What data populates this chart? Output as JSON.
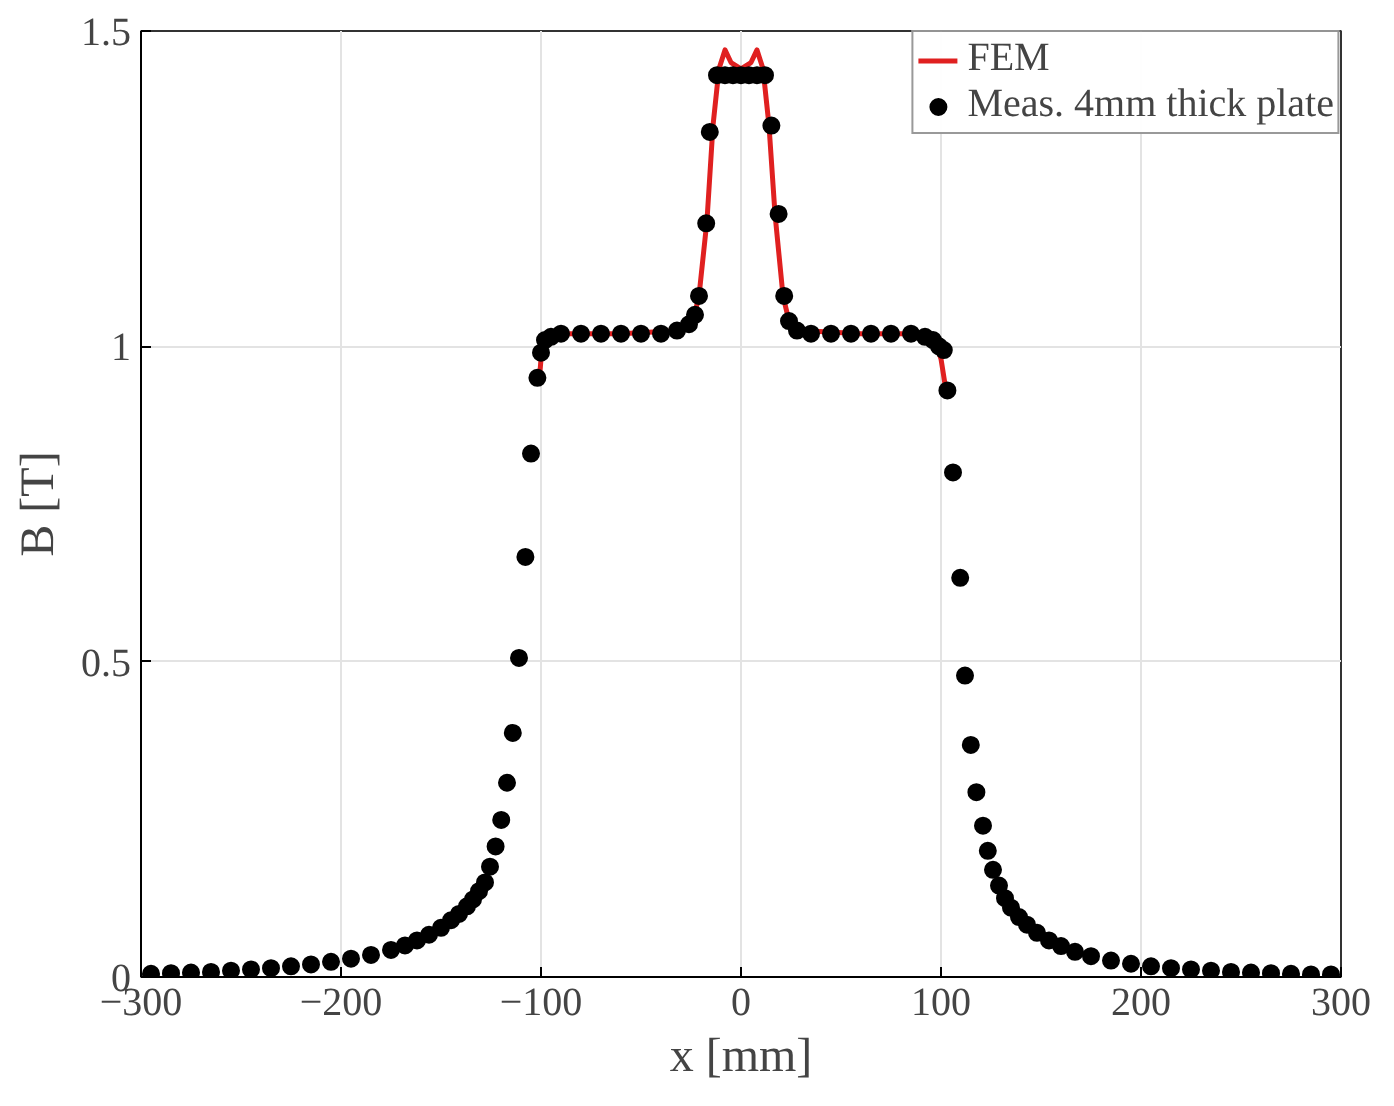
{
  "chart_data": {
    "type": "scatter",
    "xlabel": "x [mm]",
    "ylabel": "B [T]",
    "xlim": [
      -300,
      300
    ],
    "ylim": [
      0,
      1.5
    ],
    "xticks": [
      -300,
      -200,
      -100,
      0,
      100,
      200,
      300
    ],
    "yticks": [
      0,
      0.5,
      1,
      1.5
    ],
    "grid": true,
    "legend": "top right",
    "series": [
      {
        "name": "FEM",
        "type": "line",
        "color": "#e02020",
        "marker": "none",
        "line_style": "solid",
        "x": [
          -101,
          -100,
          -98,
          -95,
          -90,
          -60,
          -30,
          -24,
          -21,
          -17,
          -14,
          -11,
          -8,
          -5,
          0,
          5,
          8,
          11,
          14,
          17,
          21,
          24,
          30,
          60,
          90,
          95,
          98,
          100,
          103
        ],
        "values": [
          0.94,
          0.98,
          1.0,
          1.01,
          1.02,
          1.02,
          1.025,
          1.04,
          1.08,
          1.2,
          1.35,
          1.44,
          1.47,
          1.45,
          1.44,
          1.45,
          1.47,
          1.44,
          1.35,
          1.21,
          1.08,
          1.04,
          1.025,
          1.02,
          1.02,
          1.01,
          1.0,
          0.98,
          0.92
        ]
      },
      {
        "name": "Meas. 4mm thick plate",
        "color": "#000000",
        "marker": "circle",
        "x": [
          -295,
          -285,
          -275,
          -265,
          -255,
          -245,
          -235,
          -225,
          -215,
          -205,
          -195,
          -185,
          -175,
          -168,
          -162,
          -156,
          -150,
          -145,
          -141,
          -137,
          -134,
          -131,
          -128,
          -125.5,
          -122.7,
          -119.9,
          -117,
          -114.1,
          -111,
          -107.8,
          -105,
          -101.8,
          -100,
          -98,
          -95,
          -90,
          -80,
          -70,
          -60,
          -50,
          -40,
          -32,
          -26,
          -23,
          -21,
          -17.4,
          -15.6,
          -12,
          -8,
          -4,
          0,
          4,
          8,
          12,
          15.2,
          18.8,
          21.6,
          24,
          28,
          35,
          45,
          55,
          65,
          75,
          85,
          92,
          96,
          99,
          101.4,
          103.2,
          106,
          109.6,
          112,
          114.9,
          117.7,
          121,
          123.4,
          126,
          129,
          132,
          135,
          139,
          143,
          148,
          154,
          160,
          167,
          175,
          185,
          195,
          205,
          215,
          225,
          235,
          245,
          255,
          265,
          275,
          285,
          295
        ],
        "values": [
          0.005,
          0.006,
          0.007,
          0.008,
          0.01,
          0.012,
          0.014,
          0.017,
          0.02,
          0.024,
          0.029,
          0.035,
          0.043,
          0.05,
          0.058,
          0.067,
          0.078,
          0.09,
          0.1,
          0.112,
          0.123,
          0.136,
          0.15,
          0.175,
          0.207,
          0.249,
          0.308,
          0.387,
          0.506,
          0.666,
          0.83,
          0.95,
          0.99,
          1.01,
          1.015,
          1.02,
          1.02,
          1.02,
          1.02,
          1.02,
          1.02,
          1.025,
          1.035,
          1.05,
          1.08,
          1.195,
          1.34,
          1.43,
          1.43,
          1.43,
          1.43,
          1.43,
          1.43,
          1.43,
          1.35,
          1.21,
          1.08,
          1.04,
          1.025,
          1.02,
          1.02,
          1.02,
          1.02,
          1.02,
          1.02,
          1.015,
          1.01,
          1.0,
          0.994,
          0.93,
          0.8,
          0.633,
          0.478,
          0.368,
          0.293,
          0.24,
          0.2,
          0.17,
          0.145,
          0.125,
          0.11,
          0.095,
          0.083,
          0.07,
          0.058,
          0.049,
          0.04,
          0.033,
          0.026,
          0.021,
          0.017,
          0.014,
          0.012,
          0.01,
          0.008,
          0.007,
          0.006,
          0.005,
          0.004,
          0.004
        ]
      }
    ]
  }
}
